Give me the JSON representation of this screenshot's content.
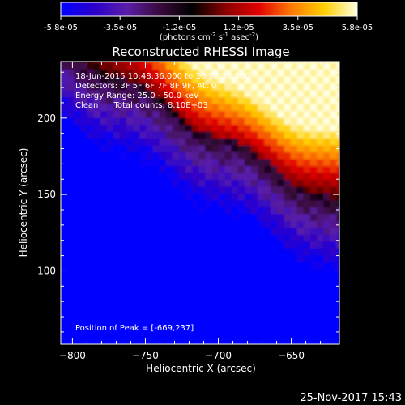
{
  "chart_data": {
    "type": "heatmap",
    "title": "Reconstructed RHESSI Image",
    "xlabel": "Heliocentric X (arcsec)",
    "ylabel": "Heliocentric Y (arcsec)",
    "xlim": [
      -808,
      -617
    ],
    "ylim": [
      52,
      237
    ],
    "x_ticks": [
      -800,
      -750,
      -700,
      -650
    ],
    "y_ticks": [
      100,
      150,
      200
    ],
    "colorbar": {
      "ticks": [
        "-5.8e-05",
        "-3.5e-05",
        "-1.2e-05",
        "1.2e-05",
        "3.5e-05",
        "5.8e-05"
      ],
      "range": [
        -5.8e-05,
        5.8e-05
      ],
      "units_label_parts": [
        "(photons cm",
        "-2",
        " s",
        "-1",
        " asec",
        "-2",
        ")"
      ],
      "colormap_stops": [
        "#0000ff",
        "#2a00cc",
        "#5a1ea8",
        "#3a0a3c",
        "#000000",
        "#8a0000",
        "#e00000",
        "#ff7a00",
        "#ffd000",
        "#ffffe0"
      ]
    },
    "annotations": [
      "18-Jun-2015 10:48:36.000 to 10:52:36.000",
      "Detectors: 3F 5F 6F 7F 8F 9F, Att 0",
      "Energy Range: 25.0 - 50.0 keV",
      "Clean      Total counts: 8.10E+03"
    ],
    "peak_label": "Position of Peak = [-669,237]",
    "peak": [
      -669,
      237
    ]
  },
  "footer": {
    "date": "25-Nov-2017 15:43"
  }
}
